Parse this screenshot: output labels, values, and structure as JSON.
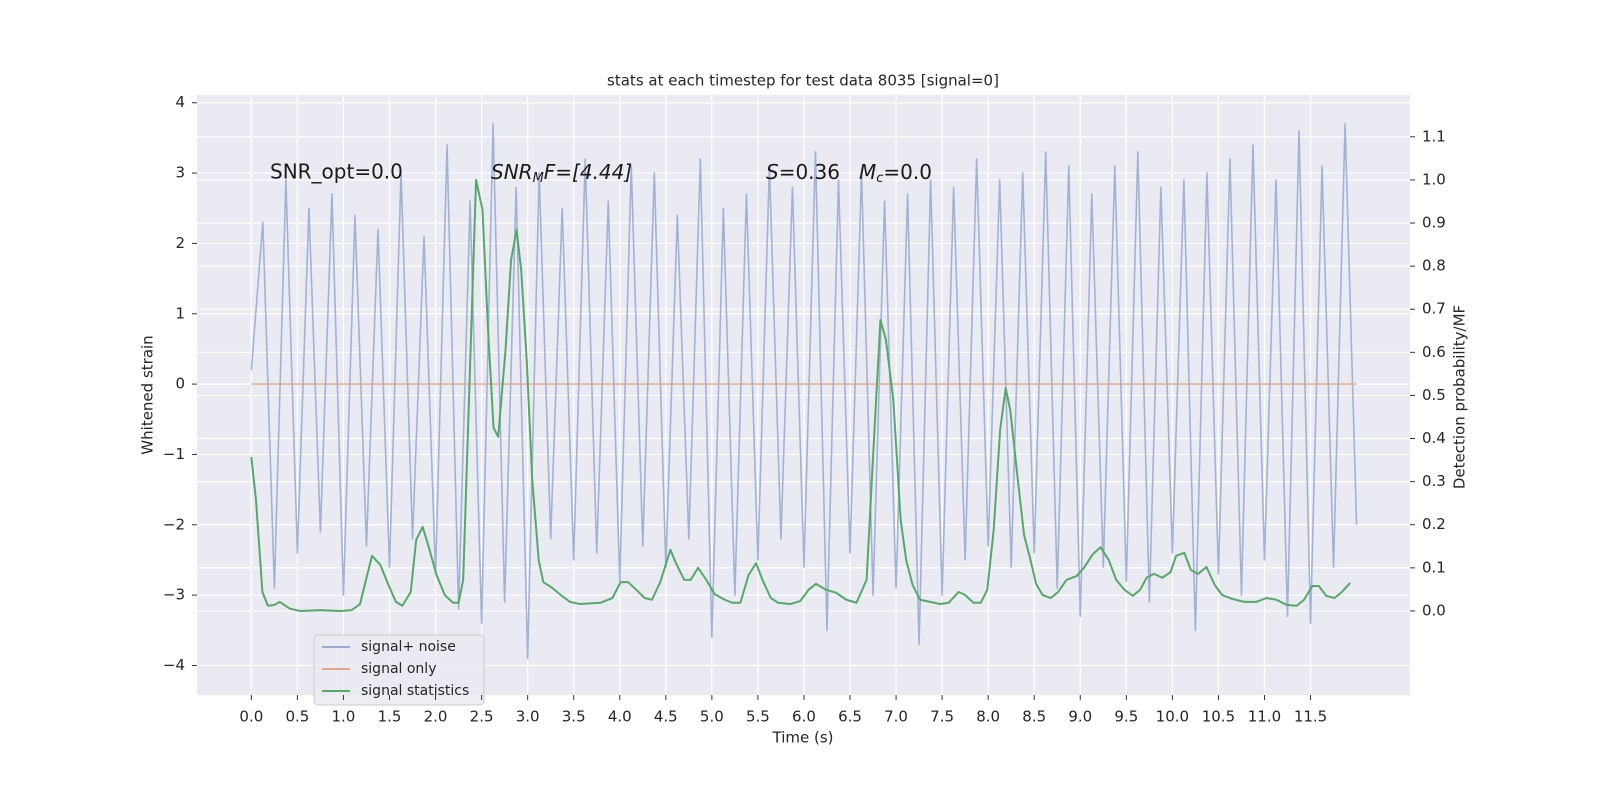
{
  "chart_data": {
    "type": "line",
    "title": "stats at each timestep for test data 8035 [signal=0]",
    "xlabel": "Time (s)",
    "ylabel": "Whitened strain",
    "y2label": "Detection probability/MF",
    "annotations": [
      {
        "text": "SNR_opt=0.0"
      },
      {
        "parts": [
          "SNR",
          "M",
          "F=[4.44]"
        ]
      },
      {
        "parts": [
          "S",
          "=0.36"
        ]
      },
      {
        "parts": [
          "M",
          "c",
          "=0.0"
        ]
      }
    ],
    "xlim": [
      -0.59,
      12.58
    ],
    "ylim": [
      -4.42,
      4.11
    ],
    "y2lim": [
      -0.195,
      1.197
    ],
    "xticks": [
      {
        "value": 0,
        "label": "0.0"
      },
      0.5,
      {
        "value": 1,
        "label": "1.0"
      },
      1.5,
      {
        "value": 2,
        "label": "2.0"
      },
      2.5,
      {
        "value": 3,
        "label": "3.0"
      },
      3.5,
      {
        "value": 4,
        "label": "4.0"
      },
      4.5,
      {
        "value": 5,
        "label": "5.0"
      },
      5.5,
      {
        "value": 6,
        "label": "6.0"
      },
      6.5,
      {
        "value": 7,
        "label": "7.0"
      },
      7.5,
      {
        "value": 8,
        "label": "8.0"
      },
      8.5,
      {
        "value": 9,
        "label": "9.0"
      },
      9.5,
      {
        "value": 10,
        "label": "10.0"
      },
      10.5,
      {
        "value": 11,
        "label": "11.0"
      },
      11.5
    ],
    "yticks": [
      {
        "value": -4,
        "label": "−4"
      },
      {
        "value": -3,
        "label": "−3"
      },
      {
        "value": -2,
        "label": "−2"
      },
      {
        "value": -1,
        "label": "−1"
      },
      0,
      1,
      2,
      3,
      4
    ],
    "y2ticks": [
      {
        "value": 0,
        "label": "0.0"
      },
      0.1,
      0.2,
      0.3,
      0.4,
      0.5,
      0.6,
      0.7,
      0.8,
      0.9,
      {
        "value": 1,
        "label": "1.0"
      },
      1.1
    ],
    "grid": true,
    "legend": "lower left",
    "series": [
      {
        "name": "signal+ noise",
        "color": "#9aabd2",
        "x": [
          0,
          0.125,
          0.25,
          0.375,
          0.5,
          0.625,
          0.75,
          0.875,
          1,
          1.125,
          1.25,
          1.375,
          1.5,
          1.625,
          1.75,
          1.875,
          2,
          2.125,
          2.25,
          2.375,
          2.5,
          2.625,
          2.75,
          2.875,
          3,
          3.125,
          3.25,
          3.375,
          3.5,
          3.625,
          3.75,
          3.875,
          4,
          4.125,
          4.25,
          4.375,
          4.5,
          4.625,
          4.75,
          4.875,
          5,
          5.125,
          5.25,
          5.375,
          5.5,
          5.625,
          5.75,
          5.875,
          6,
          6.125,
          6.25,
          6.375,
          6.5,
          6.625,
          6.75,
          6.875,
          7,
          7.125,
          7.25,
          7.375,
          7.5,
          7.625,
          7.75,
          7.875,
          8,
          8.125,
          8.25,
          8.375,
          8.5,
          8.625,
          8.75,
          8.875,
          9,
          9.125,
          9.25,
          9.375,
          9.5,
          9.625,
          9.75,
          9.875,
          10,
          10.125,
          10.25,
          10.375,
          10.5,
          10.625,
          10.75,
          10.875,
          11,
          11.125,
          11.25,
          11.375,
          11.5,
          11.625,
          11.75,
          11.875,
          12
        ],
        "values": [
          0.2,
          2.3,
          -2.9,
          2.9,
          -2.4,
          2.5,
          -2.1,
          2.7,
          -3.0,
          2.4,
          -2.3,
          2.2,
          -2.6,
          3.0,
          -2.2,
          2.1,
          -2.7,
          3.4,
          -3.2,
          2.6,
          -3.4,
          3.7,
          -3.1,
          2.8,
          -3.9,
          3.0,
          -2.2,
          2.5,
          -2.5,
          3.2,
          -2.4,
          2.6,
          -2.8,
          3.1,
          -2.3,
          3.0,
          -2.6,
          2.4,
          -2.2,
          3.2,
          -3.6,
          2.5,
          -3.0,
          2.7,
          -2.5,
          3.1,
          -2.2,
          2.8,
          -2.6,
          3.3,
          -3.5,
          2.9,
          -2.4,
          3.0,
          -3.0,
          2.6,
          -2.9,
          2.7,
          -3.7,
          2.9,
          -3.0,
          2.8,
          -2.5,
          3.2,
          -2.3,
          2.9,
          -2.6,
          3.0,
          -2.4,
          3.3,
          -2.9,
          3.1,
          -3.3,
          2.7,
          -2.6,
          3.1,
          -2.8,
          3.3,
          -3.1,
          2.8,
          -2.4,
          2.9,
          -3.5,
          3.0,
          -2.7,
          3.2,
          -3.0,
          3.4,
          -2.5,
          2.9,
          -3.3,
          3.6,
          -3.4,
          3.1,
          -2.6,
          3.7,
          -2.0
        ]
      },
      {
        "name": "signal only",
        "color": "#e1a88a",
        "x": [
          0,
          12
        ],
        "values": [
          0,
          0
        ]
      },
      {
        "name": "signal statistics",
        "color": "#55a868",
        "axis": "y2",
        "x": [
          0,
          0.05,
          0.12,
          0.18,
          0.25,
          0.31,
          0.42,
          0.53,
          0.75,
          0.96,
          1.09,
          1.18,
          1.31,
          1.4,
          1.49,
          1.57,
          1.64,
          1.73,
          1.79,
          1.86,
          1.92,
          2.01,
          2.1,
          2.19,
          2.25,
          2.3,
          2.44,
          2.51,
          2.57,
          2.63,
          2.68,
          2.76,
          2.82,
          2.88,
          2.93,
          2.99,
          3.05,
          3.12,
          3.17,
          3.27,
          3.36,
          3.46,
          3.57,
          3.79,
          3.92,
          4.01,
          4.09,
          4.18,
          4.27,
          4.35,
          4.44,
          4.55,
          4.61,
          4.7,
          4.77,
          4.85,
          4.94,
          5.03,
          5.14,
          5.22,
          5.31,
          5.4,
          5.48,
          5.55,
          5.64,
          5.72,
          5.85,
          5.96,
          6.05,
          6.13,
          6.24,
          6.35,
          6.46,
          6.57,
          6.68,
          6.76,
          6.83,
          6.89,
          6.97,
          7.05,
          7.11,
          7.18,
          7.26,
          7.37,
          7.48,
          7.57,
          7.68,
          7.75,
          7.84,
          7.92,
          7.99,
          8.06,
          8.13,
          8.19,
          8.24,
          8.31,
          8.39,
          8.46,
          8.52,
          8.59,
          8.68,
          8.76,
          8.85,
          8.96,
          9.04,
          9.13,
          9.22,
          9.31,
          9.39,
          9.48,
          9.57,
          9.65,
          9.72,
          9.8,
          9.89,
          9.98,
          10.04,
          10.13,
          10.2,
          10.28,
          10.37,
          10.46,
          10.54,
          10.65,
          10.78,
          10.91,
          11.02,
          11.13,
          11.24,
          11.35,
          11.43,
          11.52,
          11.59,
          11.67,
          11.76,
          11.84,
          11.93
        ],
        "values": [
          0.357,
          0.258,
          0.044,
          0.012,
          0.014,
          0.021,
          0.005,
          0,
          0.002,
          0,
          0.002,
          0.016,
          0.128,
          0.107,
          0.06,
          0.021,
          0.012,
          0.044,
          0.165,
          0.195,
          0.153,
          0.084,
          0.037,
          0.019,
          0.019,
          0.072,
          1.0,
          0.93,
          0.652,
          0.425,
          0.404,
          0.606,
          0.814,
          0.884,
          0.791,
          0.582,
          0.304,
          0.118,
          0.067,
          0.053,
          0.037,
          0.021,
          0.016,
          0.019,
          0.03,
          0.067,
          0.067,
          0.049,
          0.03,
          0.026,
          0.067,
          0.142,
          0.111,
          0.072,
          0.072,
          0.1,
          0.072,
          0.039,
          0.026,
          0.019,
          0.019,
          0.084,
          0.111,
          0.072,
          0.03,
          0.019,
          0.016,
          0.023,
          0.049,
          0.063,
          0.049,
          0.042,
          0.026,
          0.019,
          0.072,
          0.397,
          0.675,
          0.629,
          0.49,
          0.211,
          0.118,
          0.06,
          0.026,
          0.021,
          0.016,
          0.019,
          0.044,
          0.037,
          0.019,
          0.019,
          0.049,
          0.188,
          0.42,
          0.517,
          0.466,
          0.327,
          0.176,
          0.118,
          0.063,
          0.037,
          0.03,
          0.044,
          0.072,
          0.081,
          0.1,
          0.13,
          0.148,
          0.118,
          0.072,
          0.049,
          0.035,
          0.049,
          0.077,
          0.086,
          0.077,
          0.09,
          0.128,
          0.135,
          0.095,
          0.086,
          0.102,
          0.06,
          0.037,
          0.028,
          0.021,
          0.021,
          0.03,
          0.026,
          0.014,
          0.012,
          0.026,
          0.058,
          0.058,
          0.035,
          0.03,
          0.044,
          0.065
        ]
      }
    ]
  }
}
